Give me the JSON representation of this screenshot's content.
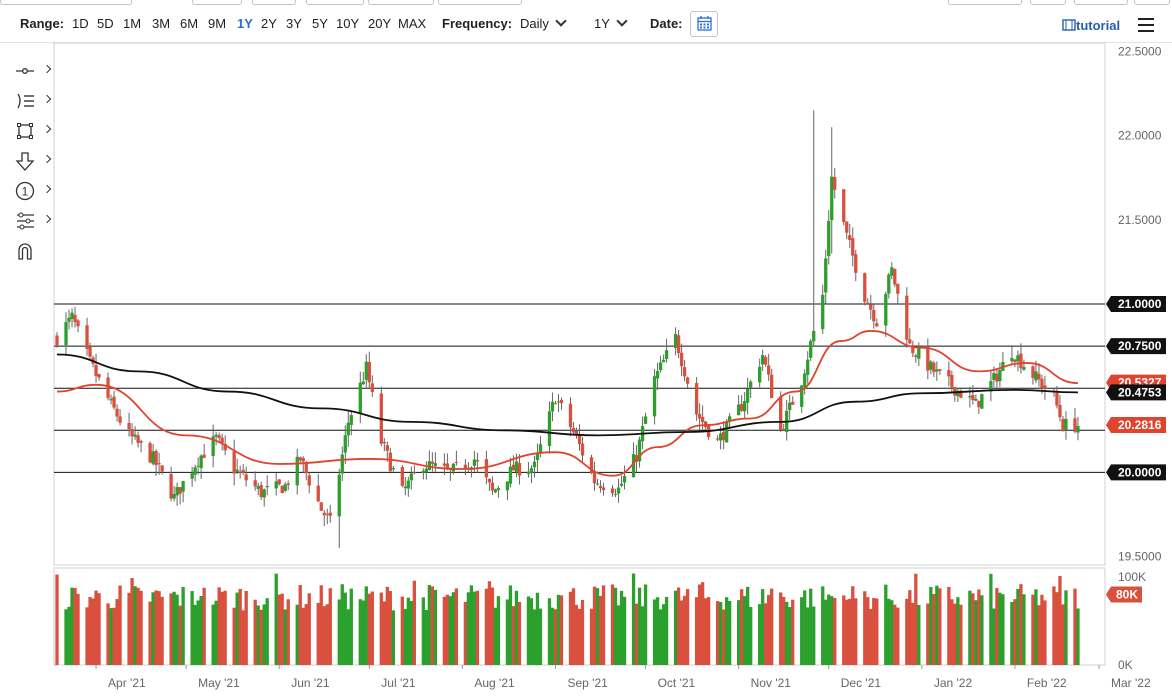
{
  "toolbar": {
    "range_label": "Range:",
    "ranges": [
      "1D",
      "5D",
      "1M",
      "3M",
      "6M",
      "9M",
      "1Y",
      "2Y",
      "3Y",
      "5Y",
      "10Y",
      "20Y",
      "MAX"
    ],
    "active_range": "1Y",
    "frequency_label": "Frequency:",
    "frequency_value": "Daily",
    "period_value": "1Y",
    "date_label": "Date:",
    "tutorial_label": "tutorial"
  },
  "tools": [
    "crosshair-icon",
    "indicators-icon",
    "shapes-icon",
    "arrow-down-icon",
    "annotation-number-icon",
    "settings-sliders-icon",
    "magnet-icon"
  ],
  "colors": {
    "up": "#2ca02c",
    "down": "#d9503f",
    "ma_fast": "#e0442f",
    "ma_slow": "#111111",
    "accent": "#2a6fd6"
  },
  "chart_data": {
    "type": "candlestick",
    "y_range": [
      19.45,
      22.55
    ],
    "y_ticks": [
      "22.5000",
      "22.0000",
      "21.5000",
      "21.0000",
      "20.5000",
      "20.0000",
      "19.5000"
    ],
    "y_tick_values": [
      22.5,
      22.0,
      21.5,
      21.0,
      20.5,
      20.0,
      19.5
    ],
    "x_labels": [
      "Apr '21",
      "May '21",
      "Jun '21",
      "Jul '21",
      "Aug '21",
      "Sep '21",
      "Oct '21",
      "Nov '21",
      "Dec '21",
      "Jan '22",
      "Feb '22",
      "Mar '22"
    ],
    "x_label_dates": [
      "2021-04-01",
      "2021-05-01",
      "2021-06-01",
      "2021-07-01",
      "2021-08-01",
      "2021-09-01",
      "2021-10-01",
      "2021-11-01",
      "2021-12-01",
      "2022-01-01",
      "2022-02-01",
      "2022-03-01"
    ],
    "x_range": [
      "2021-03-18",
      "2022-03-03"
    ],
    "last_date": "2022-02-22",
    "horizontal_lines": [
      21.0,
      20.75,
      20.5,
      20.25,
      20.0
    ],
    "price_labels": [
      {
        "text": "21.0000",
        "value": 21.0,
        "color": "#111111"
      },
      {
        "text": "20.7500",
        "value": 20.75,
        "color": "#111111"
      },
      {
        "text": "20.5327",
        "value": 20.5327,
        "color": "#e0442f"
      },
      {
        "text": "20.4753",
        "value": 20.4753,
        "color": "#111111"
      },
      {
        "text": "20.2816",
        "value": 20.2816,
        "color": "#e0442f"
      },
      {
        "text": "20.0000",
        "value": 20.0,
        "color": "#111111"
      }
    ],
    "close_path": [
      [
        "2021-03-19",
        20.8
      ],
      [
        "2021-03-24",
        20.92
      ],
      [
        "2021-03-30",
        20.65
      ],
      [
        "2021-04-06",
        20.4
      ],
      [
        "2021-04-12",
        20.22
      ],
      [
        "2021-04-20",
        20.08
      ],
      [
        "2021-04-27",
        19.85
      ],
      [
        "2021-05-05",
        20.08
      ],
      [
        "2021-05-11",
        20.2
      ],
      [
        "2021-05-17",
        20.02
      ],
      [
        "2021-05-26",
        19.88
      ],
      [
        "2021-06-03",
        19.92
      ],
      [
        "2021-06-08",
        20.08
      ],
      [
        "2021-06-15",
        19.78
      ],
      [
        "2021-06-18",
        19.7
      ],
      [
        "2021-06-24",
        20.3
      ],
      [
        "2021-06-30",
        20.62
      ],
      [
        "2021-07-05",
        20.18
      ],
      [
        "2021-07-12",
        19.88
      ],
      [
        "2021-07-19",
        20.05
      ],
      [
        "2021-07-28",
        20.0
      ],
      [
        "2021-08-05",
        20.08
      ],
      [
        "2021-08-11",
        19.88
      ],
      [
        "2021-08-18",
        20.02
      ],
      [
        "2021-08-25",
        20.03
      ],
      [
        "2021-09-01",
        20.45
      ],
      [
        "2021-09-08",
        20.2
      ],
      [
        "2021-09-14",
        19.95
      ],
      [
        "2021-09-22",
        19.9
      ],
      [
        "2021-09-28",
        20.1
      ],
      [
        "2021-10-04",
        20.55
      ],
      [
        "2021-10-11",
        20.8
      ],
      [
        "2021-10-18",
        20.35
      ],
      [
        "2021-10-25",
        20.18
      ],
      [
        "2021-11-02",
        20.4
      ],
      [
        "2021-11-09",
        20.7
      ],
      [
        "2021-11-15",
        20.25
      ],
      [
        "2021-11-22",
        20.55
      ],
      [
        "2021-11-29",
        21.05
      ],
      [
        "2021-12-02",
        21.75
      ],
      [
        "2021-12-07",
        21.4
      ],
      [
        "2021-12-13",
        21.05
      ],
      [
        "2021-12-17",
        20.9
      ],
      [
        "2021-12-22",
        21.2
      ],
      [
        "2021-12-28",
        20.75
      ],
      [
        "2022-01-05",
        20.6
      ],
      [
        "2022-01-12",
        20.5
      ],
      [
        "2022-01-19",
        20.4
      ],
      [
        "2022-01-25",
        20.55
      ],
      [
        "2022-01-31",
        20.72
      ],
      [
        "2022-02-07",
        20.58
      ],
      [
        "2022-02-14",
        20.45
      ],
      [
        "2022-02-17",
        20.28
      ],
      [
        "2022-02-22",
        20.28
      ]
    ],
    "spikes": [
      [
        "2021-11-26",
        22.15,
        20.95
      ],
      [
        "2021-12-02",
        22.05,
        21.3
      ],
      [
        "2021-06-21",
        19.62,
        19.55
      ],
      [
        "2021-03-22",
        20.95,
        20.7
      ]
    ],
    "moving_averages": [
      {
        "name": "",
        "color": "#e0442f",
        "points": [
          [
            "2021-03-19",
            20.48
          ],
          [
            "2021-04-01",
            20.52
          ],
          [
            "2021-05-01",
            20.22
          ],
          [
            "2021-06-01",
            20.05
          ],
          [
            "2021-07-01",
            20.08
          ],
          [
            "2021-08-01",
            20.02
          ],
          [
            "2021-09-01",
            20.12
          ],
          [
            "2021-09-20",
            19.98
          ],
          [
            "2021-10-05",
            20.15
          ],
          [
            "2021-10-20",
            20.28
          ],
          [
            "2021-11-05",
            20.32
          ],
          [
            "2021-11-20",
            20.48
          ],
          [
            "2021-12-05",
            20.78
          ],
          [
            "2021-12-15",
            20.84
          ],
          [
            "2022-01-01",
            20.74
          ],
          [
            "2022-01-20",
            20.6
          ],
          [
            "2022-02-05",
            20.65
          ],
          [
            "2022-02-22",
            20.53
          ]
        ]
      },
      {
        "name": "",
        "color": "#111111",
        "points": [
          [
            "2021-03-19",
            20.7
          ],
          [
            "2021-04-15",
            20.6
          ],
          [
            "2021-05-15",
            20.48
          ],
          [
            "2021-06-15",
            20.38
          ],
          [
            "2021-07-15",
            20.3
          ],
          [
            "2021-08-15",
            20.25
          ],
          [
            "2021-09-15",
            20.22
          ],
          [
            "2021-10-15",
            20.24
          ],
          [
            "2021-11-15",
            20.3
          ],
          [
            "2021-12-10",
            20.42
          ],
          [
            "2022-01-01",
            20.47
          ],
          [
            "2022-02-01",
            20.49
          ],
          [
            "2022-02-22",
            20.475
          ]
        ]
      }
    ],
    "volume": {
      "y_range": [
        0,
        110000
      ],
      "ticks": [
        "100K",
        "0K"
      ],
      "tick_values": [
        100000,
        0
      ],
      "last_label": "80K",
      "last_value": 80000
    }
  }
}
